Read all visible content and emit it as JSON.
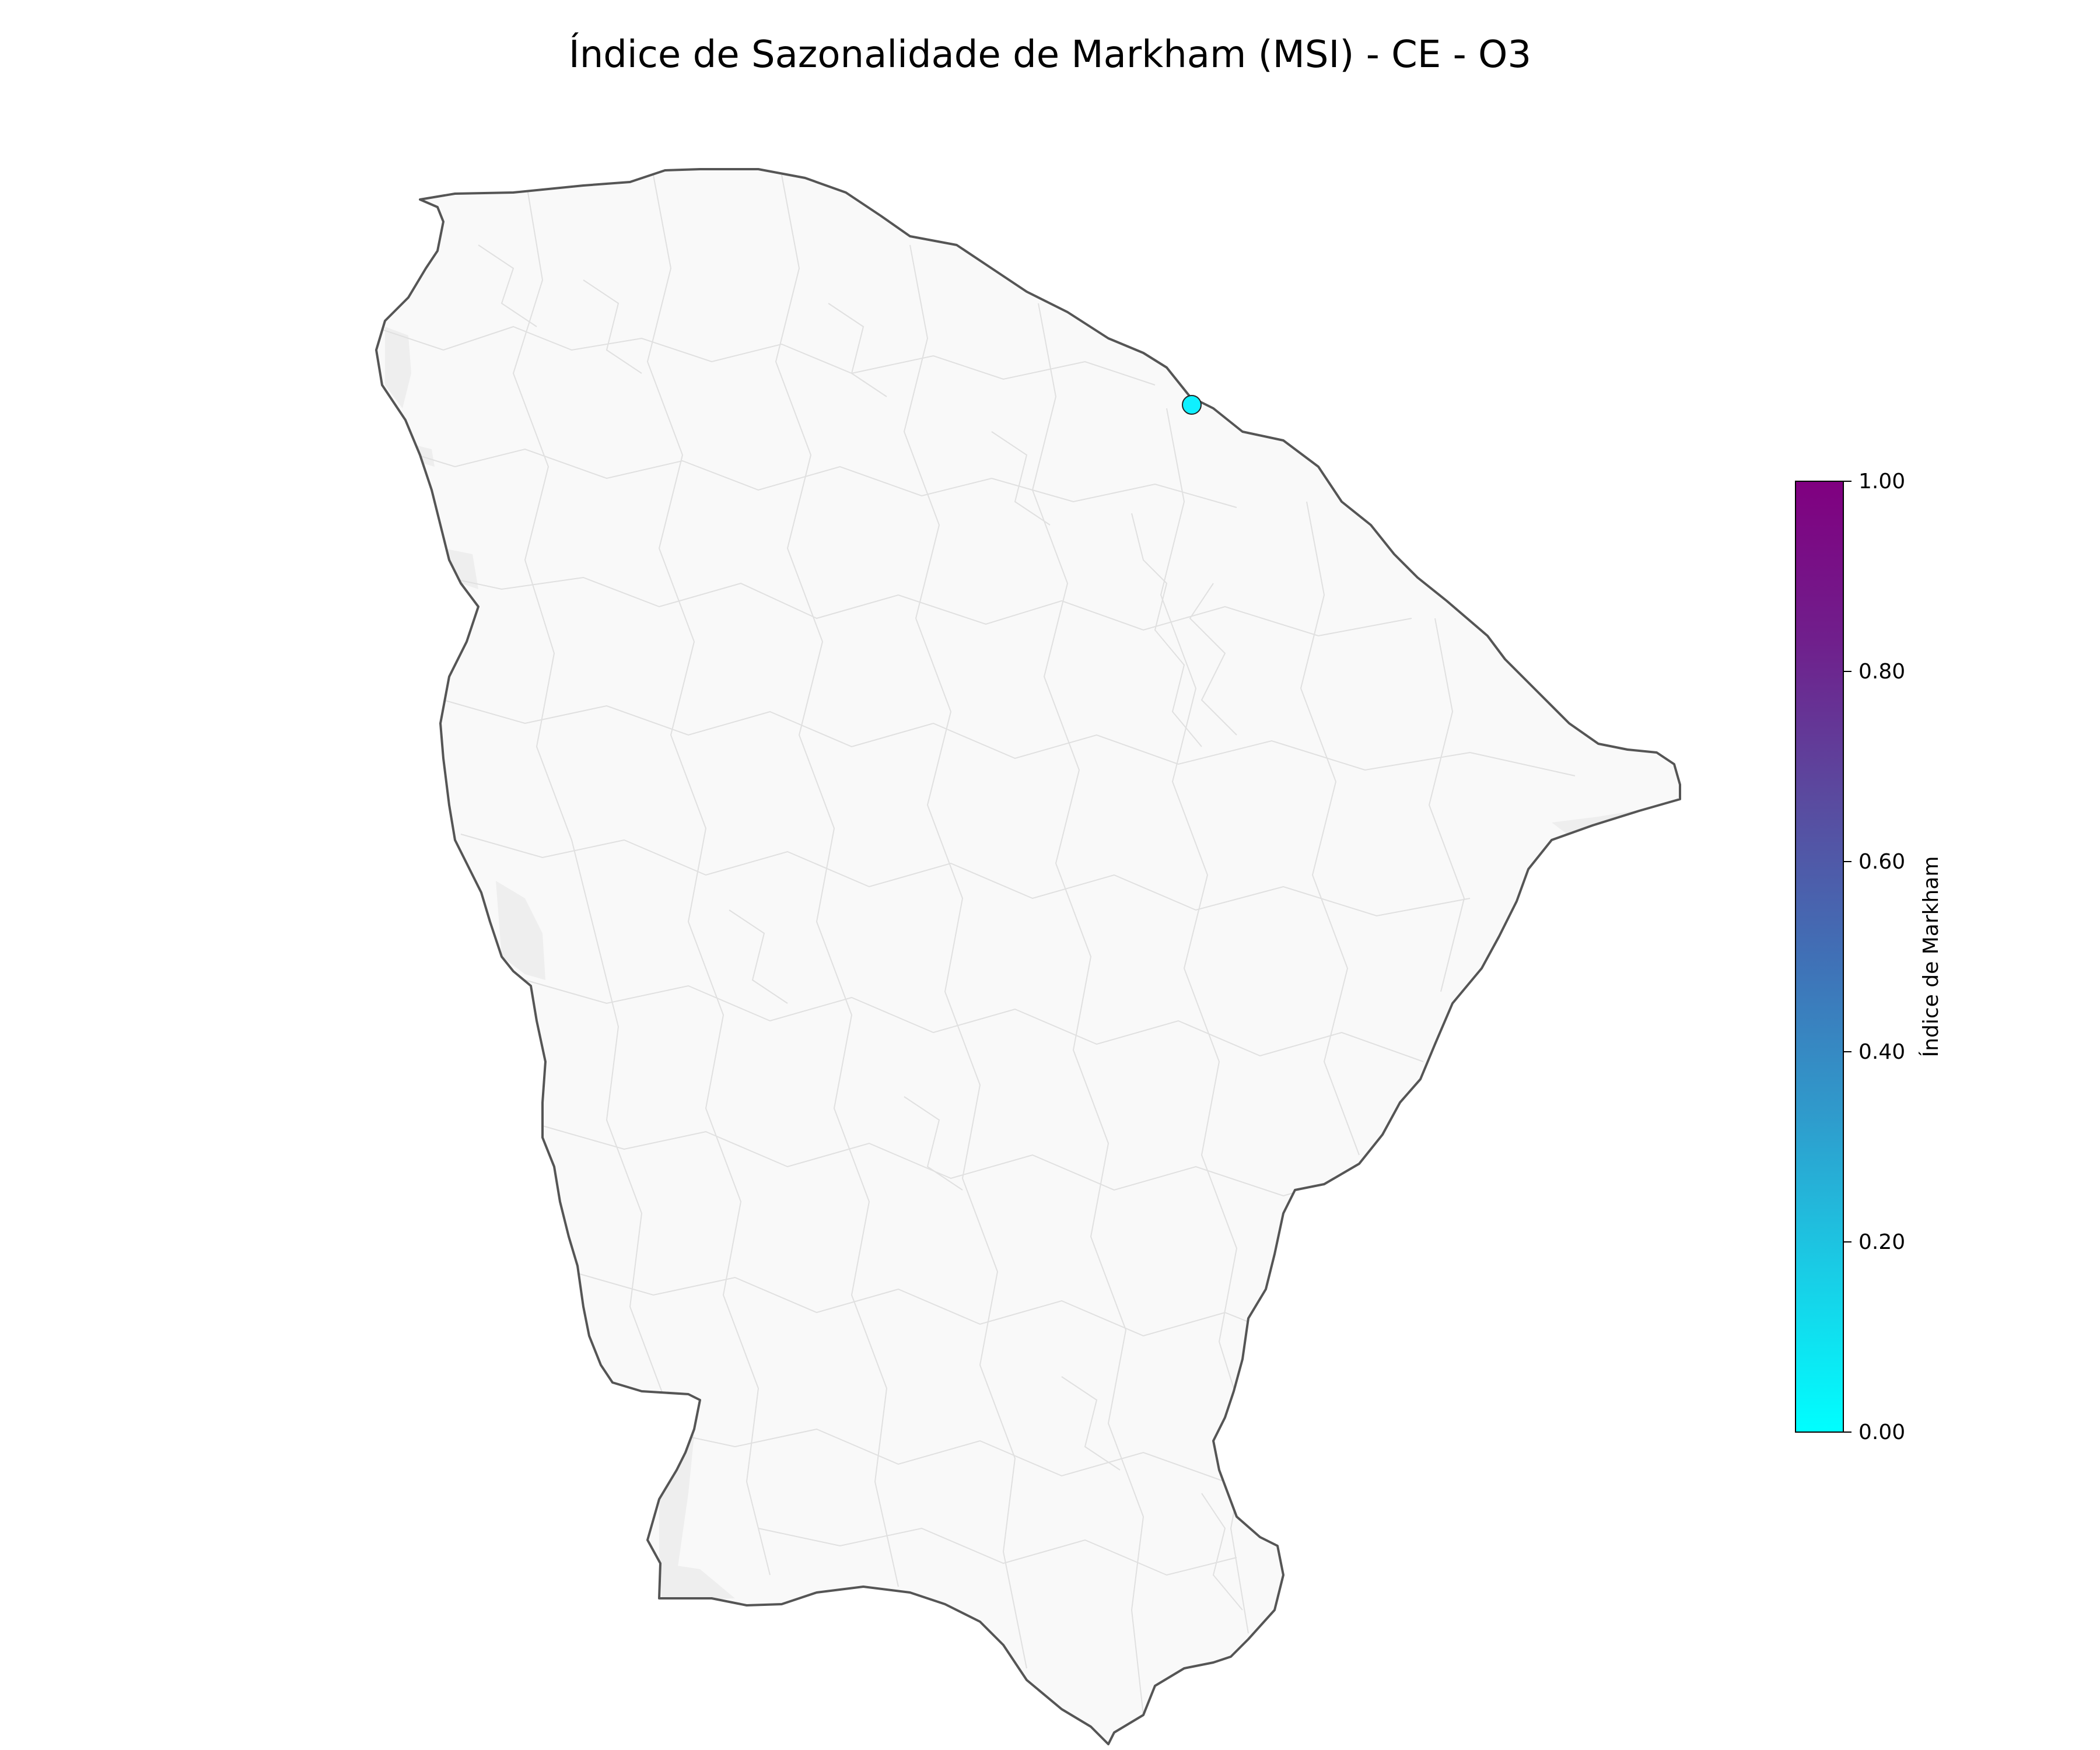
{
  "title": "Índice de Sazonalidade de Markham (MSI) - CE - O3",
  "colorbar": {
    "label": "Índice de Markham",
    "range": [
      0.0,
      1.0
    ],
    "colormap": "cool-purple",
    "stops": [
      "#00ffff",
      "#19cde6",
      "#2f9bcc",
      "#4070b6",
      "#5a4a9f",
      "#701f8c",
      "#800080"
    ],
    "ticks": [
      "0.00",
      "0.20",
      "0.40",
      "0.60",
      "0.80",
      "1.00"
    ]
  },
  "map": {
    "region": "CE",
    "fill_color": "#f9f9f9",
    "border_color": "#555555",
    "station_value": 0.05,
    "station_color": "#0ff0ff"
  }
}
